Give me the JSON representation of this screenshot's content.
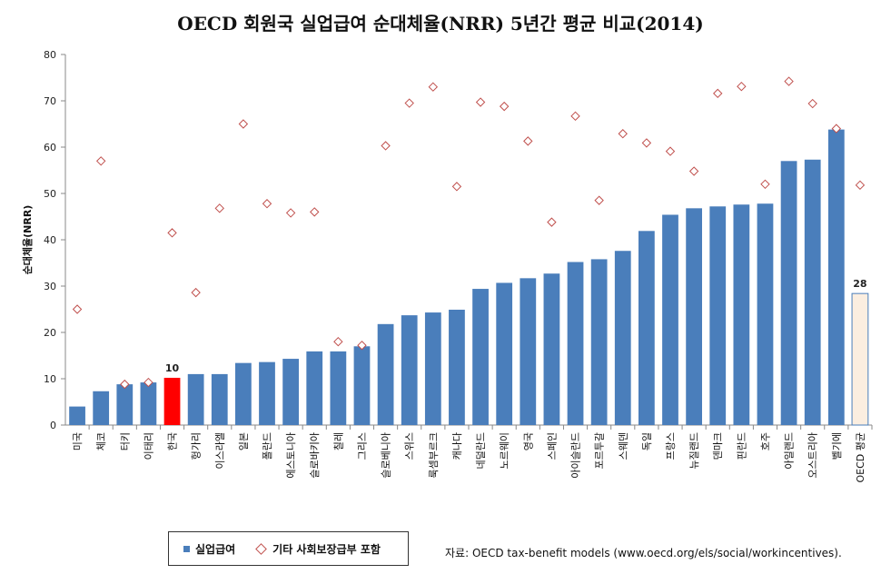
{
  "chart_data": {
    "type": "bar",
    "title": "OECD 회원국 실업급여 순대체율(NRR) 5년간 평균 비교(2014)",
    "ylabel": "순대체율(NRR)",
    "ylim": [
      0,
      80
    ],
    "yticks": [
      0,
      10,
      20,
      30,
      40,
      50,
      60,
      70,
      80
    ],
    "categories": [
      "미국",
      "체코",
      "터키",
      "이태리",
      "한국",
      "헝가리",
      "이스라엘",
      "일본",
      "폴란드",
      "에스토니아",
      "슬로바키아",
      "칠레",
      "그리스",
      "슬로베니아",
      "스위스",
      "룩셈부르크",
      "캐나다",
      "네덜란드",
      "노르웨이",
      "영국",
      "스페인",
      "아이슬란드",
      "포르투갈",
      "스웨덴",
      "독일",
      "프랑스",
      "뉴질랜드",
      "덴마크",
      "핀란드",
      "호주",
      "아일랜드",
      "오스트리아",
      "벨기에",
      "OECD 평균"
    ],
    "series": [
      {
        "name": "실업급여",
        "type": "bar",
        "values": [
          4,
          7.3,
          8.8,
          9.2,
          10.2,
          11,
          11,
          13.4,
          13.6,
          14.3,
          15.9,
          15.9,
          17,
          21.8,
          23.7,
          24.3,
          24.9,
          29.4,
          30.7,
          31.7,
          32.7,
          35.2,
          35.8,
          37.6,
          41.9,
          45.4,
          46.8,
          47.2,
          47.6,
          47.8,
          57,
          57.3,
          63.8,
          28.4
        ]
      },
      {
        "name": "기타 사회보장급부 포함",
        "type": "scatter",
        "values": [
          25,
          57,
          8.8,
          9.2,
          41.5,
          28.6,
          46.8,
          65,
          47.8,
          45.8,
          46,
          18,
          17.2,
          60.3,
          69.5,
          73,
          51.5,
          69.7,
          68.8,
          61.3,
          43.8,
          66.7,
          48.5,
          62.9,
          60.9,
          59.1,
          54.8,
          71.6,
          73.1,
          52,
          74.2,
          69.4,
          64,
          51.8
        ]
      }
    ],
    "data_labels": [
      {
        "category": "한국",
        "label": "10"
      },
      {
        "category": "OECD 평균",
        "label": "28"
      }
    ],
    "highlight": {
      "한국": "#ff0000",
      "OECD 평균": "#fbeee0"
    },
    "colors": {
      "bar": "#4a7ebb",
      "diamond": "#c0504d"
    },
    "grid": false,
    "legend": "bottom-left"
  },
  "legend": {
    "bar_label": "실업급여",
    "marker_label": "기타 사회보장급부 포함"
  },
  "source": "자료: OECD tax-benefit models (www.oecd.org/els/social/workincentives)."
}
